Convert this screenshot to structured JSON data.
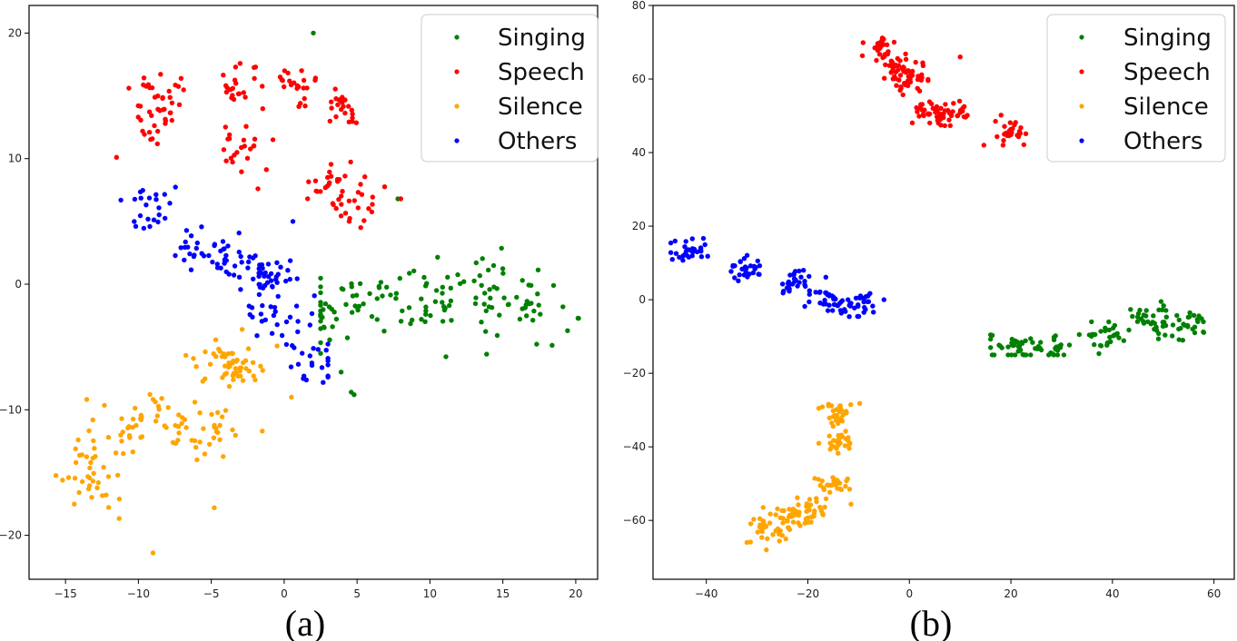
{
  "chart_data": [
    {
      "type": "scatter",
      "panel_caption": "(a)",
      "title": "",
      "xlabel": "",
      "ylabel": "",
      "xlim": [
        -17.5,
        21.5
      ],
      "ylim": [
        -23.5,
        22.2
      ],
      "xticks": [
        -15,
        -10,
        -5,
        0,
        5,
        10,
        15,
        20
      ],
      "yticks": [
        -20,
        -10,
        0,
        10,
        20
      ],
      "legend": [
        "Singing",
        "Speech",
        "Silence",
        "Others"
      ],
      "legend_position": "top-right",
      "grid": false,
      "series": [
        {
          "name": "Singing",
          "color": "#008000",
          "cluster_centers": [
            [
              5,
              -1
            ],
            [
              11,
              -2
            ],
            [
              17,
              -2
            ],
            [
              9,
              0
            ],
            [
              14,
              0
            ],
            [
              3,
              -3
            ]
          ],
          "spread": [
            3.6,
            2.4
          ],
          "count": 140,
          "outliers": [
            [
              2,
              20
            ],
            [
              4.6,
              -8.6
            ],
            [
              4.8,
              -8.8
            ],
            [
              7.8,
              6.8
            ]
          ],
          "x_range": [
            2.5,
            20.2
          ],
          "y_range": [
            -7,
            4
          ]
        },
        {
          "name": "Speech",
          "color": "#FF0000",
          "cluster_centers": [
            [
              -9,
              15
            ],
            [
              -8.5,
              13
            ],
            [
              -3,
              16
            ],
            [
              1,
              16
            ],
            [
              4,
              14
            ],
            [
              -3,
              11
            ],
            [
              5,
              6
            ],
            [
              3,
              8
            ]
          ],
          "spread": [
            1.5,
            1.6
          ],
          "count": 170,
          "outliers": [
            [
              -11.5,
              10.1
            ],
            [
              -1.8,
              7.6
            ],
            [
              8,
              6.8
            ]
          ],
          "x_range": [
            -11.5,
            8.5
          ],
          "y_range": [
            4.5,
            19
          ]
        },
        {
          "name": "Silence",
          "color": "#FFA500",
          "cluster_centers": [
            [
              -12,
              -12
            ],
            [
              -9,
              -11
            ],
            [
              -5,
              -12
            ],
            [
              -4,
              -7
            ],
            [
              -13,
              -16
            ],
            [
              -3,
              -6
            ]
          ],
          "spread": [
            2.2,
            2.3
          ],
          "count": 160,
          "outliers": [
            [
              -9,
              -21.4
            ],
            [
              -4.8,
              -17.8
            ],
            [
              0.5,
              -9
            ],
            [
              -1.5,
              -11.7
            ]
          ],
          "x_range": [
            -16,
            0.5
          ],
          "y_range": [
            -21.4,
            -3.6
          ]
        },
        {
          "name": "Others",
          "color": "#0000FF",
          "cluster_centers": [
            [
              -9,
              6
            ],
            [
              -6,
              3
            ],
            [
              -4,
              2
            ],
            [
              -2,
              0
            ],
            [
              0,
              -3
            ],
            [
              2,
              -6
            ],
            [
              -1,
              1
            ]
          ],
          "spread": [
            1.8,
            1.8
          ],
          "count": 150,
          "outliers": [
            [
              0.6,
              5
            ],
            [
              -11.2,
              6.7
            ]
          ],
          "x_range": [
            -11.5,
            3
          ],
          "y_range": [
            -9.2,
            8.4
          ]
        }
      ]
    },
    {
      "type": "scatter",
      "panel_caption": "(b)",
      "title": "",
      "xlabel": "",
      "ylabel": "",
      "xlim": [
        -50.5,
        64
      ],
      "ylim": [
        -76,
        80
      ],
      "xticks": [
        -40,
        -20,
        0,
        20,
        40,
        60
      ],
      "yticks": [
        -60,
        -40,
        -20,
        0,
        20,
        40,
        60,
        80
      ],
      "legend": [
        "Singing",
        "Speech",
        "Silence",
        "Others"
      ],
      "legend_position": "top-right",
      "grid": false,
      "series": [
        {
          "name": "Singing",
          "color": "#008000",
          "cluster_centers": [
            [
              48,
              -5
            ],
            [
              55,
              -7
            ],
            [
              38,
              -10
            ],
            [
              27,
              -13
            ],
            [
              21,
              -13
            ]
          ],
          "spread": [
            5,
            3.5
          ],
          "count": 150,
          "outliers": [
            [
              16,
              -13
            ]
          ],
          "x_range": [
            16,
            62
          ],
          "y_range": [
            -15,
            2
          ]
        },
        {
          "name": "Speech",
          "color": "#FF0000",
          "cluster_centers": [
            [
              -6,
              68
            ],
            [
              0,
              60
            ],
            [
              4,
              52
            ],
            [
              8,
              50
            ],
            [
              20,
              46
            ],
            [
              -2,
              63
            ]
          ],
          "spread": [
            3.2,
            3.6
          ],
          "count": 170,
          "outliers": [
            [
              10,
              66
            ],
            [
              -3,
              70
            ]
          ],
          "x_range": [
            -10,
            25
          ],
          "y_range": [
            42,
            73
          ]
        },
        {
          "name": "Others",
          "color": "#0000FF",
          "cluster_centers": [
            [
              -43,
              13
            ],
            [
              -32,
              8
            ],
            [
              -22,
              4
            ],
            [
              -16,
              0
            ],
            [
              -10,
              -1
            ]
          ],
          "spread": [
            3.5,
            3.2
          ],
          "count": 150,
          "outliers": [
            [
              -5,
              0
            ]
          ],
          "x_range": [
            -47,
            -5
          ],
          "y_range": [
            -5,
            18
          ]
        },
        {
          "name": "Silence",
          "color": "#FFA500",
          "cluster_centers": [
            [
              -28,
              -62
            ],
            [
              -20,
              -57
            ],
            [
              -15,
              -50
            ],
            [
              -14,
              -38
            ],
            [
              -14,
              -30
            ],
            [
              -24,
              -60
            ]
          ],
          "spread": [
            3.2,
            3.6
          ],
          "count": 170,
          "outliers": [
            [
              -32,
              -66
            ]
          ],
          "x_range": [
            -34,
            -9
          ],
          "y_range": [
            -68,
            -27
          ]
        }
      ]
    }
  ]
}
